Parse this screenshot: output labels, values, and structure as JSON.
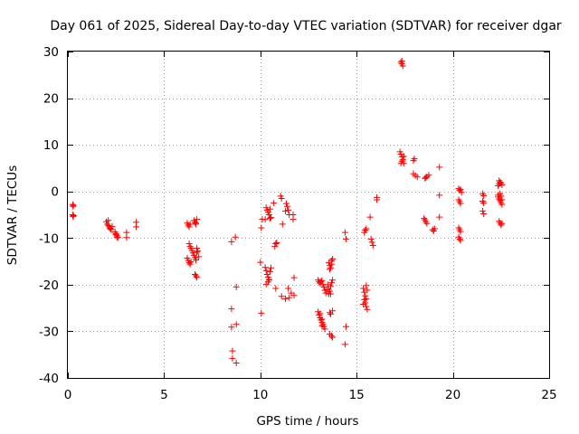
{
  "chart_data": {
    "type": "scatter",
    "title": "Day 061 of 2025, Sidereal Day-to-day VTEC variation (SDTVAR) for receiver dgar",
    "xlabel": "GPS time / hours",
    "ylabel": "SDTVAR / TECUs",
    "xlim": [
      0,
      25
    ],
    "ylim": [
      -40,
      30
    ],
    "xticks": [
      0,
      5,
      10,
      15,
      20,
      25
    ],
    "yticks": [
      -40,
      -30,
      -20,
      -10,
      0,
      10,
      20,
      30
    ],
    "xtick_labels": [
      "0",
      "5",
      "10",
      "15",
      "20",
      "25"
    ],
    "ytick_labels": [
      "-40",
      "-30",
      "-20",
      "-10",
      "0",
      "10",
      "20",
      "30"
    ],
    "grid": true,
    "marker": "plus",
    "color": "#ff0000",
    "series": [
      {
        "name": "SDTVAR",
        "points": [
          [
            0.25,
            -2.8
          ],
          [
            0.27,
            -3.2
          ],
          [
            0.29,
            -3.0
          ],
          [
            0.25,
            -5.0
          ],
          [
            0.27,
            -5.4
          ],
          [
            0.29,
            -5.2
          ],
          [
            2.0,
            -6.5
          ],
          [
            2.05,
            -7.0
          ],
          [
            2.1,
            -7.3
          ],
          [
            2.15,
            -7.6
          ],
          [
            2.2,
            -8.0
          ],
          [
            2.25,
            -8.2
          ],
          [
            2.3,
            -7.5
          ],
          [
            2.1,
            -6.2
          ],
          [
            2.2,
            -7.9
          ],
          [
            2.45,
            -8.7
          ],
          [
            2.5,
            -9.1
          ],
          [
            2.55,
            -9.5
          ],
          [
            2.6,
            -9.9
          ],
          [
            2.5,
            -9.3
          ],
          [
            2.55,
            -9.8
          ],
          [
            3.05,
            -8.8
          ],
          [
            3.05,
            -9.9
          ],
          [
            3.55,
            -6.6
          ],
          [
            3.55,
            -7.6
          ],
          [
            6.2,
            -6.8
          ],
          [
            6.25,
            -7.2
          ],
          [
            6.3,
            -7.6
          ],
          [
            6.35,
            -7.0
          ],
          [
            6.55,
            -6.2
          ],
          [
            6.6,
            -6.6
          ],
          [
            6.65,
            -7.0
          ],
          [
            6.7,
            -6.0
          ],
          [
            6.65,
            -6.8
          ],
          [
            6.3,
            -11.2
          ],
          [
            6.35,
            -11.8
          ],
          [
            6.4,
            -12.2
          ],
          [
            6.45,
            -12.7
          ],
          [
            6.5,
            -13.2
          ],
          [
            6.55,
            -13.7
          ],
          [
            6.6,
            -14.2
          ],
          [
            6.65,
            -14.7
          ],
          [
            6.7,
            -13.0
          ],
          [
            6.75,
            -12.8
          ],
          [
            6.8,
            -14.0
          ],
          [
            6.7,
            -12.2
          ],
          [
            6.2,
            -14.3
          ],
          [
            6.25,
            -14.8
          ],
          [
            6.3,
            -15.3
          ],
          [
            6.35,
            -15.6
          ],
          [
            6.4,
            -15.1
          ],
          [
            6.6,
            -17.8
          ],
          [
            6.65,
            -18.1
          ],
          [
            6.7,
            -18.4
          ],
          [
            8.5,
            -10.8
          ],
          [
            8.7,
            -9.8
          ],
          [
            8.5,
            -25.2
          ],
          [
            8.5,
            -29.1
          ],
          [
            8.75,
            -28.5
          ],
          [
            8.75,
            -20.5
          ],
          [
            8.55,
            -34.2
          ],
          [
            8.55,
            -35.8
          ],
          [
            8.75,
            -36.8
          ],
          [
            10.0,
            -15.2
          ],
          [
            10.05,
            -26.1
          ],
          [
            10.1,
            -6.0
          ],
          [
            10.05,
            -7.8
          ],
          [
            10.25,
            -16.3
          ],
          [
            10.3,
            -17.0
          ],
          [
            10.35,
            -17.8
          ],
          [
            10.4,
            -18.4
          ],
          [
            10.45,
            -19.0
          ],
          [
            10.5,
            -17.2
          ],
          [
            10.55,
            -16.4
          ],
          [
            10.3,
            -19.9
          ],
          [
            10.4,
            -19.4
          ],
          [
            10.45,
            -18.9
          ],
          [
            10.3,
            -3.5
          ],
          [
            10.35,
            -4.0
          ],
          [
            10.4,
            -4.5
          ],
          [
            10.45,
            -5.0
          ],
          [
            10.5,
            -3.8
          ],
          [
            10.55,
            -5.6
          ],
          [
            10.5,
            -5.8
          ],
          [
            10.25,
            -6.0
          ],
          [
            10.7,
            -2.5
          ],
          [
            10.8,
            -11.2
          ],
          [
            10.75,
            -11.8
          ],
          [
            10.85,
            -11.0
          ],
          [
            10.8,
            -20.8
          ],
          [
            11.05,
            -1.0
          ],
          [
            11.1,
            -1.5
          ],
          [
            11.15,
            -7.0
          ],
          [
            11.35,
            -2.6
          ],
          [
            11.4,
            -3.2
          ],
          [
            11.45,
            -4.0
          ],
          [
            11.5,
            -5.0
          ],
          [
            11.3,
            -4.2
          ],
          [
            11.7,
            -5.0
          ],
          [
            11.7,
            -6.0
          ],
          [
            11.1,
            -22.5
          ],
          [
            11.3,
            -23.0
          ],
          [
            11.5,
            -22.8
          ],
          [
            11.6,
            -21.8
          ],
          [
            11.45,
            -20.8
          ],
          [
            11.75,
            -22.3
          ],
          [
            11.75,
            -18.5
          ],
          [
            13.0,
            -19.0
          ],
          [
            13.05,
            -19.4
          ],
          [
            13.1,
            -19.7
          ],
          [
            13.15,
            -19.3
          ],
          [
            13.2,
            -19.1
          ],
          [
            13.25,
            -20.0
          ],
          [
            13.3,
            -20.5
          ],
          [
            13.35,
            -21.2
          ],
          [
            13.4,
            -21.8
          ],
          [
            13.45,
            -21.0
          ],
          [
            13.5,
            -20.0
          ],
          [
            13.55,
            -22.0
          ],
          [
            13.6,
            -21.4
          ],
          [
            13.65,
            -20.4
          ],
          [
            13.7,
            -19.6
          ],
          [
            13.75,
            -19.0
          ],
          [
            13.65,
            -22.0
          ],
          [
            13.55,
            -21.0
          ],
          [
            13.0,
            -25.8
          ],
          [
            13.05,
            -26.5
          ],
          [
            13.1,
            -27.1
          ],
          [
            13.15,
            -27.6
          ],
          [
            13.2,
            -28.1
          ],
          [
            13.25,
            -28.5
          ],
          [
            13.3,
            -29.0
          ],
          [
            13.1,
            -26.2
          ],
          [
            13.2,
            -27.4
          ],
          [
            13.35,
            -29.5
          ],
          [
            13.2,
            -28.8
          ],
          [
            13.55,
            -15.3
          ],
          [
            13.6,
            -15.9
          ],
          [
            13.65,
            -16.4
          ],
          [
            13.7,
            -14.9
          ],
          [
            13.75,
            -14.5
          ],
          [
            13.7,
            -15.6
          ],
          [
            13.6,
            -16.7
          ],
          [
            13.6,
            -26.0
          ],
          [
            13.75,
            -25.6
          ],
          [
            13.65,
            -26.3
          ],
          [
            13.6,
            -30.6
          ],
          [
            13.7,
            -31.0
          ],
          [
            13.75,
            -31.3
          ],
          [
            14.4,
            -8.8
          ],
          [
            14.45,
            -10.2
          ],
          [
            14.45,
            -29.0
          ],
          [
            14.4,
            -32.8
          ],
          [
            15.4,
            -8.8
          ],
          [
            15.45,
            -8.3
          ],
          [
            15.5,
            -8.0
          ],
          [
            15.35,
            -20.8
          ],
          [
            15.4,
            -21.6
          ],
          [
            15.45,
            -22.4
          ],
          [
            15.5,
            -20.2
          ],
          [
            15.55,
            -21.2
          ],
          [
            15.4,
            -23.2
          ],
          [
            15.45,
            -23.9
          ],
          [
            15.5,
            -24.7
          ],
          [
            15.55,
            -25.3
          ],
          [
            15.35,
            -24.2
          ],
          [
            15.5,
            -23.0
          ],
          [
            15.7,
            -5.5
          ],
          [
            15.75,
            -10.2
          ],
          [
            15.8,
            -10.9
          ],
          [
            15.85,
            -11.6
          ],
          [
            16.05,
            -1.8
          ],
          [
            16.05,
            -1.3
          ],
          [
            17.3,
            27.7
          ],
          [
            17.35,
            27.4
          ],
          [
            17.4,
            26.9
          ],
          [
            17.35,
            28.0
          ],
          [
            17.25,
            8.5
          ],
          [
            17.3,
            8.0
          ],
          [
            17.35,
            7.4
          ],
          [
            17.4,
            6.8
          ],
          [
            17.45,
            6.0
          ],
          [
            17.3,
            6.0
          ],
          [
            17.35,
            6.5
          ],
          [
            17.45,
            7.5
          ],
          [
            18.0,
            7.0
          ],
          [
            17.95,
            6.6
          ],
          [
            17.95,
            3.8
          ],
          [
            18.05,
            3.4
          ],
          [
            18.15,
            3.1
          ],
          [
            18.55,
            2.8
          ],
          [
            18.65,
            3.2
          ],
          [
            18.75,
            3.5
          ],
          [
            18.6,
            3.0
          ],
          [
            18.5,
            -5.8
          ],
          [
            18.55,
            -6.1
          ],
          [
            18.6,
            -6.5
          ],
          [
            18.65,
            -6.9
          ],
          [
            18.95,
            -8.2
          ],
          [
            19.0,
            -8.5
          ],
          [
            19.05,
            -8.0
          ],
          [
            19.3,
            5.2
          ],
          [
            19.3,
            -0.8
          ],
          [
            19.3,
            -5.5
          ],
          [
            20.3,
            0.6
          ],
          [
            20.35,
            0.2
          ],
          [
            20.4,
            0.4
          ],
          [
            20.45,
            -0.2
          ],
          [
            20.3,
            -1.8
          ],
          [
            20.35,
            -2.2
          ],
          [
            20.4,
            -2.6
          ],
          [
            20.3,
            -7.8
          ],
          [
            20.35,
            -8.2
          ],
          [
            20.4,
            -8.6
          ],
          [
            20.3,
            -9.8
          ],
          [
            20.35,
            -10.2
          ],
          [
            20.4,
            -10.5
          ],
          [
            21.55,
            -0.5
          ],
          [
            21.6,
            -0.9
          ],
          [
            21.55,
            -2.1
          ],
          [
            21.6,
            -2.5
          ],
          [
            21.55,
            -4.2
          ],
          [
            21.6,
            -4.8
          ],
          [
            22.35,
            1.2
          ],
          [
            22.4,
            1.6
          ],
          [
            22.45,
            2.0
          ],
          [
            22.5,
            1.8
          ],
          [
            22.55,
            1.4
          ],
          [
            22.4,
            2.3
          ],
          [
            22.35,
            -1.2
          ],
          [
            22.4,
            -1.6
          ],
          [
            22.45,
            -2.0
          ],
          [
            22.5,
            -2.4
          ],
          [
            22.55,
            -2.8
          ],
          [
            22.35,
            -0.8
          ],
          [
            22.45,
            -0.5
          ],
          [
            22.5,
            -1.0
          ],
          [
            22.55,
            -1.8
          ],
          [
            22.4,
            -6.4
          ],
          [
            22.45,
            -6.8
          ],
          [
            22.5,
            -7.2
          ],
          [
            22.55,
            -6.9
          ]
        ]
      }
    ]
  }
}
